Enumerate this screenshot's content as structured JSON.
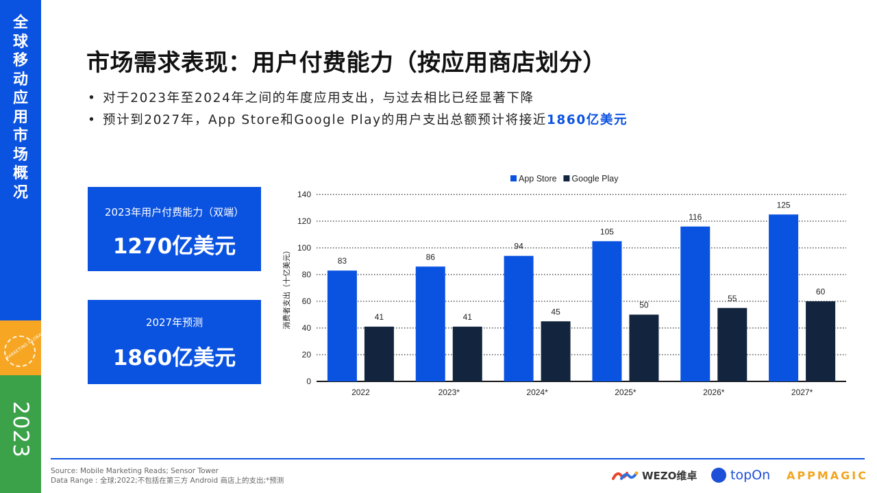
{
  "sidebar": {
    "title_chars": [
      "全",
      "球",
      "移",
      "动",
      "应",
      "用",
      "市",
      "场",
      "概",
      "况"
    ],
    "badge_text": "MARKETING GLOBAL MOBILE APP ADVERTISING",
    "year": "2023",
    "colors": {
      "blue": "#0a52e0",
      "orange": "#f6a623",
      "green": "#3ba24a"
    }
  },
  "header": {
    "title": "市场需求表现：用户付费能力（按应用商店划分）"
  },
  "bullets": [
    {
      "text": "对于2023年至2024年之间的年度应用支出，与过去相比已经显著下降"
    },
    {
      "text": "预计到2027年，App Store和Google Play的用户支出总额预计将接近",
      "highlight": "1860亿美元"
    }
  ],
  "kpis": [
    {
      "label": "2023年用户付费能力（双端）",
      "value": "1270亿美元"
    },
    {
      "label": "2027年预测",
      "value": "1860亿美元"
    }
  ],
  "chart_data": {
    "type": "bar",
    "categories": [
      "2022",
      "2023*",
      "2024*",
      "2025*",
      "2026*",
      "2027*"
    ],
    "series": [
      {
        "name": "App Store",
        "values": [
          83,
          86,
          94,
          105,
          116,
          125
        ],
        "color": "#0a52e0"
      },
      {
        "name": "Google Play",
        "values": [
          41,
          41,
          45,
          50,
          55,
          60
        ],
        "color": "#13253e"
      }
    ],
    "ylabel": "消费者支出（十亿美元）",
    "ylim": [
      0,
      140
    ],
    "yticks": [
      0,
      20,
      40,
      60,
      80,
      100,
      120,
      140
    ],
    "grid": true,
    "legend_position": "top-center",
    "data_labels": true
  },
  "footer": {
    "source": "Source:  Mobile Marketing Reads; Sensor Tower",
    "data_range": "Data Range :  全球;2022;不包括在第三方 Android 商店上的支出;*预测",
    "logos": {
      "wezo": "WEZO维卓",
      "topon": "topOn",
      "appmagic": "APPMAGIC"
    }
  }
}
